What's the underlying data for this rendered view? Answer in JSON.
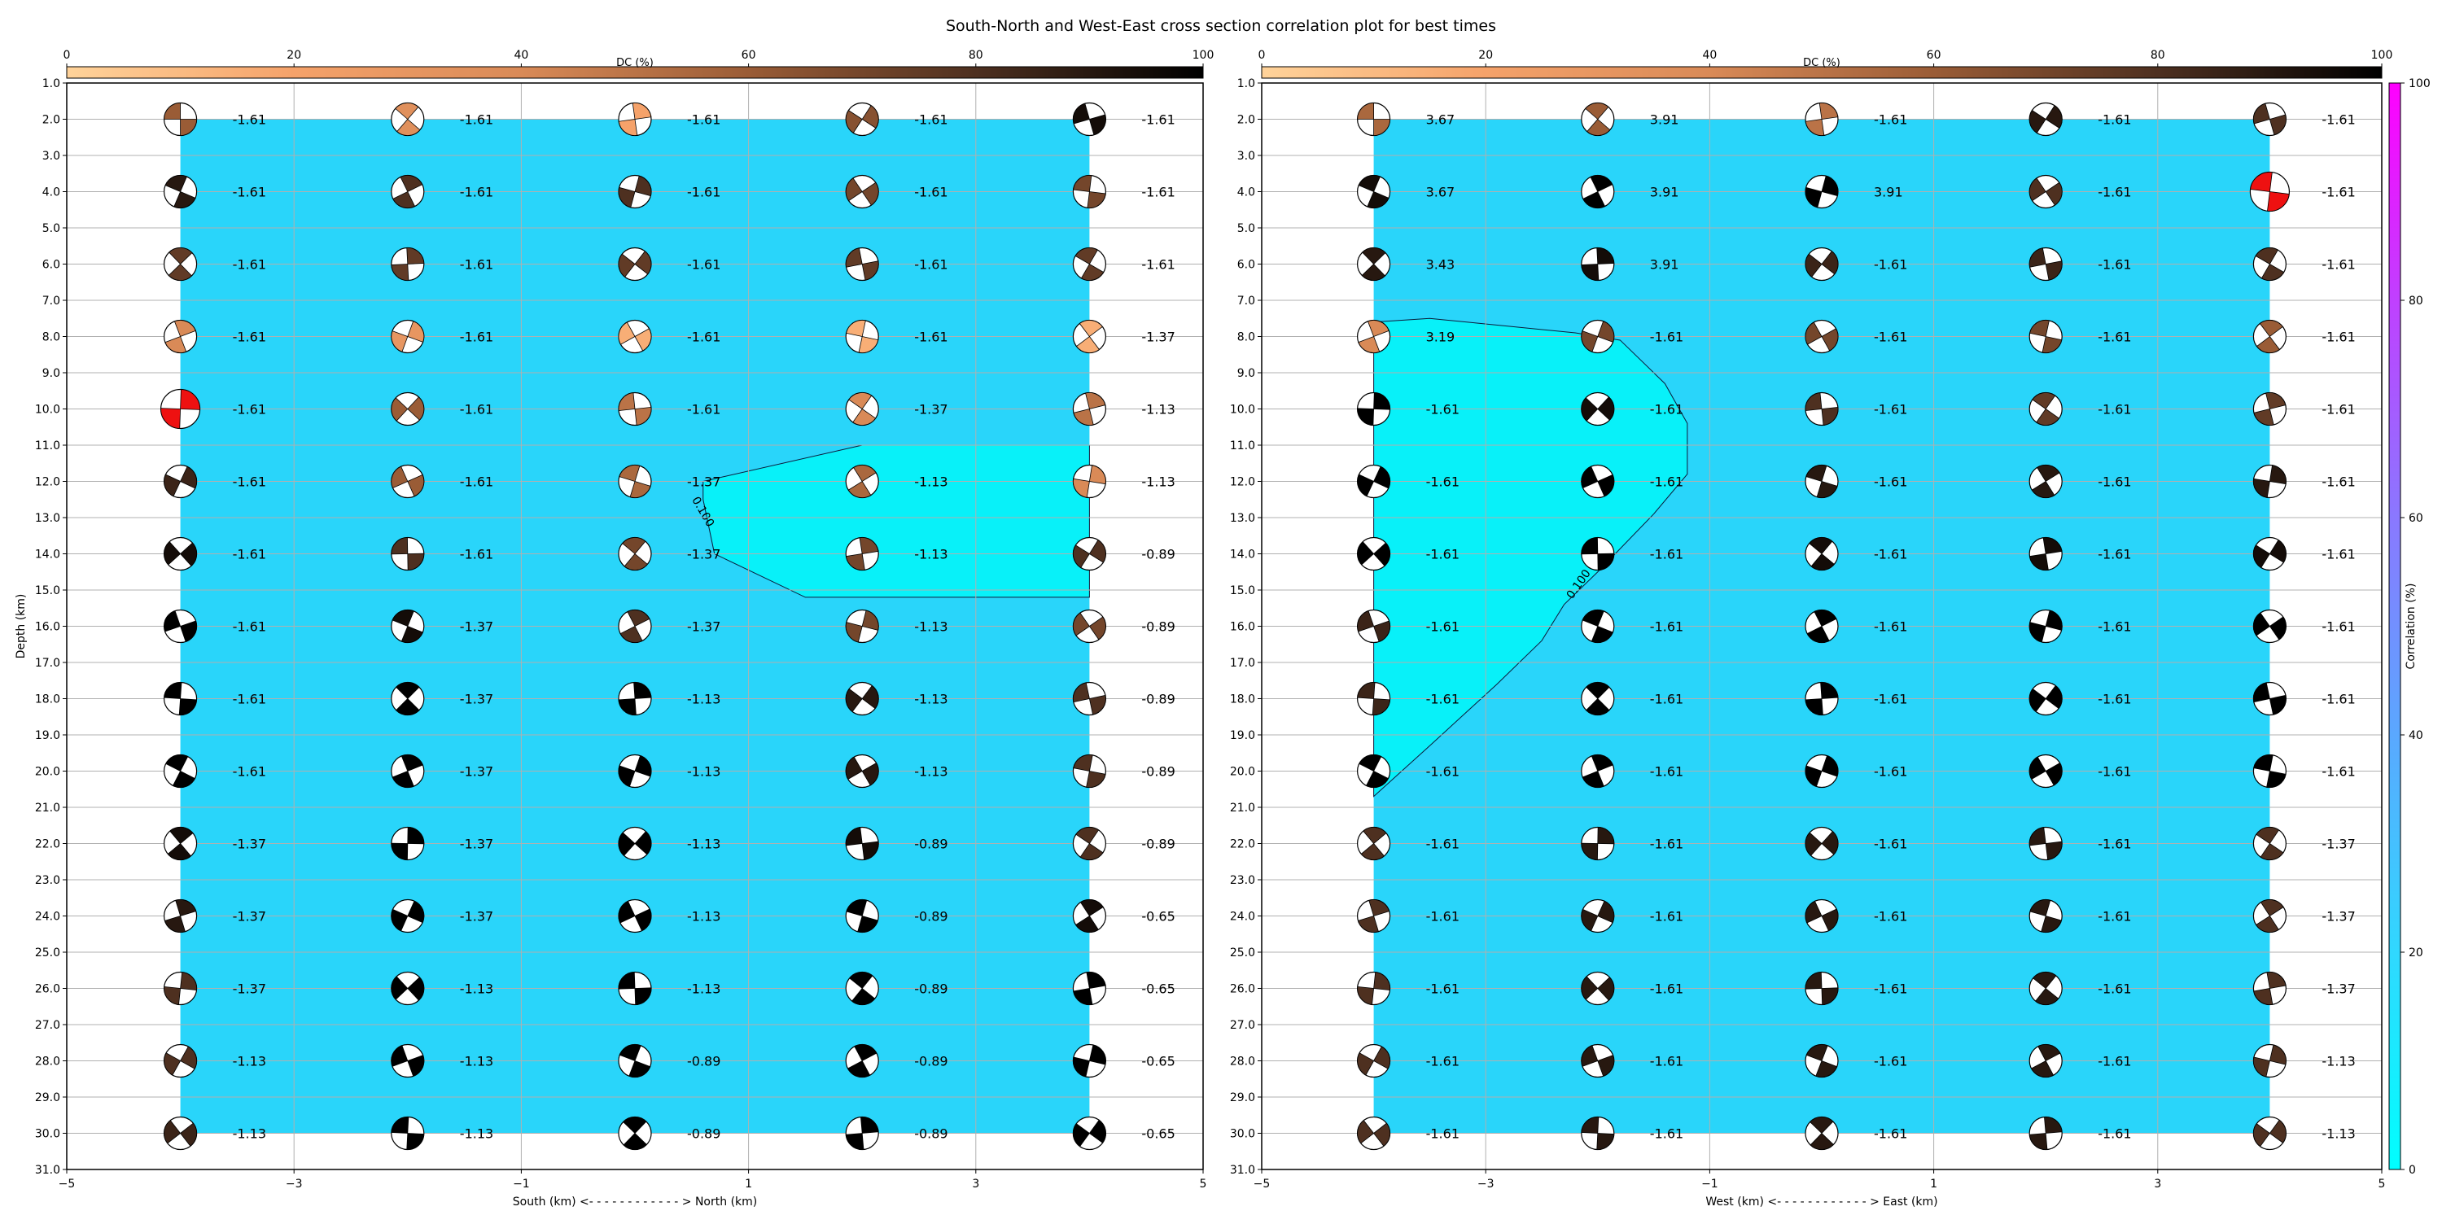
{
  "figure": {
    "title": "South-North and West-East cross section correlation plot for best times"
  },
  "colors": {
    "background_fill": "#29d5fa",
    "high_corr_fill": "#08f1f9",
    "grid": "#b0b0b0",
    "nodal_red": "#ee1111",
    "dc_colormap": [
      "#ffd39a",
      "#f5a26a",
      "#d98a57",
      "#9a5c36",
      "#4e3020",
      "#000000"
    ],
    "corr_colormap": [
      "#00ffff",
      "#30d8ff",
      "#5aa8ff",
      "#8a78ff",
      "#c040ff",
      "#ff00ff"
    ]
  },
  "chart_data": [
    {
      "type": "scatter",
      "panel": "south-north",
      "title": "",
      "xlabel": "South (km) <- - - - - - - - - - - - > North (km)",
      "ylabel": "Depth (km)",
      "xlim": [
        -5,
        5
      ],
      "ylim": [
        31.0,
        1.0
      ],
      "xticks": [
        -5,
        -3,
        -1,
        1,
        3,
        5
      ],
      "yticks": [
        1.0,
        2.0,
        3.0,
        4.0,
        5.0,
        6.0,
        7.0,
        8.0,
        9.0,
        10.0,
        11.0,
        12.0,
        13.0,
        14.0,
        15.0,
        16.0,
        17.0,
        18.0,
        19.0,
        20.0,
        21.0,
        22.0,
        23.0,
        24.0,
        25.0,
        26.0,
        27.0,
        28.0,
        29.0,
        30.0,
        31.0
      ],
      "grid": true,
      "colorbar": {
        "label": "DC (%)",
        "ticks": [
          0,
          20,
          40,
          60,
          80,
          100
        ],
        "position": "top"
      },
      "x": [
        -4,
        -2,
        0,
        2,
        4
      ],
      "depths": [
        2,
        4,
        6,
        8,
        10,
        12,
        14,
        16,
        18,
        20,
        22,
        24,
        26,
        28,
        30
      ],
      "values": [
        [
          "-1.61",
          "-1.61",
          "-1.61",
          "-1.61",
          "-1.61"
        ],
        [
          "-1.61",
          "-1.61",
          "-1.61",
          "-1.61",
          "-1.61"
        ],
        [
          "-1.61",
          "-1.61",
          "-1.61",
          "-1.61",
          "-1.61"
        ],
        [
          "-1.61",
          "-1.61",
          "-1.61",
          "-1.61",
          "-1.37"
        ],
        [
          "-1.61",
          "-1.61",
          "-1.61",
          "-1.37",
          "-1.13"
        ],
        [
          "-1.61",
          "-1.61",
          "-1.37",
          "-1.13",
          "-1.13"
        ],
        [
          "-1.61",
          "-1.61",
          "-1.37",
          "-1.13",
          "-0.89"
        ],
        [
          "-1.61",
          "-1.37",
          "-1.37",
          "-1.13",
          "-0.89"
        ],
        [
          "-1.61",
          "-1.37",
          "-1.13",
          "-1.13",
          "-0.89"
        ],
        [
          "-1.61",
          "-1.37",
          "-1.13",
          "-1.13",
          "-0.89"
        ],
        [
          "-1.37",
          "-1.37",
          "-1.13",
          "-0.89",
          "-0.89"
        ],
        [
          "-1.37",
          "-1.37",
          "-1.13",
          "-0.89",
          "-0.65"
        ],
        [
          "-1.37",
          "-1.13",
          "-1.13",
          "-0.89",
          "-0.65"
        ],
        [
          "-1.13",
          "-1.13",
          "-0.89",
          "-0.89",
          "-0.65"
        ],
        [
          "-1.13",
          "-1.13",
          "-0.89",
          "-0.89",
          "-0.65"
        ]
      ],
      "dc": [
        [
          60,
          35,
          20,
          65,
          95
        ],
        [
          90,
          80,
          80,
          70,
          70
        ],
        [
          75,
          75,
          75,
          75,
          75
        ],
        [
          40,
          30,
          15,
          15,
          15
        ],
        [
          60,
          60,
          50,
          40,
          50
        ],
        [
          85,
          60,
          55,
          55,
          40
        ],
        [
          95,
          80,
          70,
          70,
          80
        ],
        [
          100,
          95,
          80,
          70,
          70
        ],
        [
          100,
          100,
          100,
          90,
          80
        ],
        [
          100,
          100,
          100,
          90,
          80
        ],
        [
          95,
          100,
          100,
          95,
          80
        ],
        [
          90,
          100,
          100,
          100,
          95
        ],
        [
          80,
          100,
          100,
          100,
          100
        ],
        [
          80,
          100,
          100,
          100,
          100
        ],
        [
          85,
          100,
          100,
          100,
          100
        ]
      ],
      "red_cells": [
        [
          4,
          0
        ]
      ],
      "contour": {
        "label": "0.100",
        "points": [
          [
            0.6,
            12.5
          ],
          [
            0.7,
            14.0
          ],
          [
            1.5,
            15.2
          ],
          [
            4,
            15.2
          ],
          [
            4,
            11.0
          ],
          [
            2,
            11.0
          ],
          [
            0.6,
            12.0
          ]
        ]
      }
    },
    {
      "type": "scatter",
      "panel": "west-east",
      "title": "",
      "xlabel": "West (km) <- - - - - - - - - - - - > East (km)",
      "ylabel": "",
      "xlim": [
        -5,
        5
      ],
      "ylim": [
        31.0,
        1.0
      ],
      "xticks": [
        -5,
        -3,
        -1,
        1,
        3,
        5
      ],
      "yticks": [
        1.0,
        2.0,
        3.0,
        4.0,
        5.0,
        6.0,
        7.0,
        8.0,
        9.0,
        10.0,
        11.0,
        12.0,
        13.0,
        14.0,
        15.0,
        16.0,
        17.0,
        18.0,
        19.0,
        20.0,
        21.0,
        22.0,
        23.0,
        24.0,
        25.0,
        26.0,
        27.0,
        28.0,
        29.0,
        30.0,
        31.0
      ],
      "grid": true,
      "colorbar": {
        "label": "DC (%)",
        "ticks": [
          0,
          20,
          40,
          60,
          80,
          100
        ],
        "position": "top"
      },
      "corr_colorbar": {
        "label": "Correlation (%)",
        "ticks": [
          0,
          20,
          40,
          60,
          80,
          100
        ],
        "position": "right"
      },
      "x": [
        -4,
        -2,
        0,
        2,
        4
      ],
      "depths": [
        2,
        4,
        6,
        8,
        10,
        12,
        14,
        16,
        18,
        20,
        22,
        24,
        26,
        28,
        30
      ],
      "values": [
        [
          "3.67",
          "3.91",
          "-1.61",
          "-1.61",
          "-1.61"
        ],
        [
          "3.67",
          "3.91",
          "3.91",
          "-1.61",
          "-1.61"
        ],
        [
          "3.43",
          "3.91",
          "-1.61",
          "-1.61",
          "-1.61"
        ],
        [
          "3.19",
          "-1.61",
          "-1.61",
          "-1.61",
          "-1.61"
        ],
        [
          "-1.61",
          "-1.61",
          "-1.61",
          "-1.61",
          "-1.61"
        ],
        [
          "-1.61",
          "-1.61",
          "-1.61",
          "-1.61",
          "-1.61"
        ],
        [
          "-1.61",
          "-1.61",
          "-1.61",
          "-1.61",
          "-1.61"
        ],
        [
          "-1.61",
          "-1.61",
          "-1.61",
          "-1.61",
          "-1.61"
        ],
        [
          "-1.61",
          "-1.61",
          "-1.61",
          "-1.61",
          "-1.61"
        ],
        [
          "-1.61",
          "-1.61",
          "-1.61",
          "-1.61",
          "-1.61"
        ],
        [
          "-1.61",
          "-1.61",
          "-1.61",
          "-1.61",
          "-1.37"
        ],
        [
          "-1.61",
          "-1.61",
          "-1.61",
          "-1.61",
          "-1.37"
        ],
        [
          "-1.61",
          "-1.61",
          "-1.61",
          "-1.61",
          "-1.37"
        ],
        [
          "-1.61",
          "-1.61",
          "-1.61",
          "-1.61",
          "-1.13"
        ],
        [
          "-1.61",
          "-1.61",
          "-1.61",
          "-1.61",
          "-1.13"
        ]
      ],
      "dc": [
        [
          55,
          60,
          50,
          90,
          80
        ],
        [
          95,
          100,
          100,
          80,
          80
        ],
        [
          90,
          95,
          85,
          85,
          80
        ],
        [
          40,
          70,
          70,
          70,
          60
        ],
        [
          100,
          95,
          80,
          75,
          75
        ],
        [
          100,
          100,
          90,
          90,
          90
        ],
        [
          100,
          100,
          95,
          95,
          95
        ],
        [
          85,
          100,
          100,
          100,
          100
        ],
        [
          85,
          100,
          100,
          100,
          100
        ],
        [
          100,
          100,
          100,
          100,
          100
        ],
        [
          80,
          90,
          90,
          90,
          80
        ],
        [
          80,
          90,
          90,
          90,
          80
        ],
        [
          80,
          90,
          90,
          90,
          80
        ],
        [
          80,
          90,
          90,
          90,
          80
        ],
        [
          80,
          90,
          90,
          90,
          80
        ]
      ],
      "red_cells": [
        [
          1,
          4
        ]
      ],
      "contour": {
        "label": "0.100",
        "points": [
          [
            -4,
            7.6
          ],
          [
            -3.5,
            7.5
          ],
          [
            -2.2,
            7.9
          ],
          [
            -1.8,
            8.1
          ],
          [
            -1.4,
            9.3
          ],
          [
            -1.2,
            10.4
          ],
          [
            -1.2,
            11.8
          ],
          [
            -1.5,
            12.9
          ],
          [
            -2.0,
            14.5
          ],
          [
            -2.3,
            15.4
          ],
          [
            -2.5,
            16.4
          ],
          [
            -2.9,
            17.6
          ],
          [
            -3.5,
            19.3
          ],
          [
            -4,
            20.7
          ]
        ]
      }
    }
  ]
}
